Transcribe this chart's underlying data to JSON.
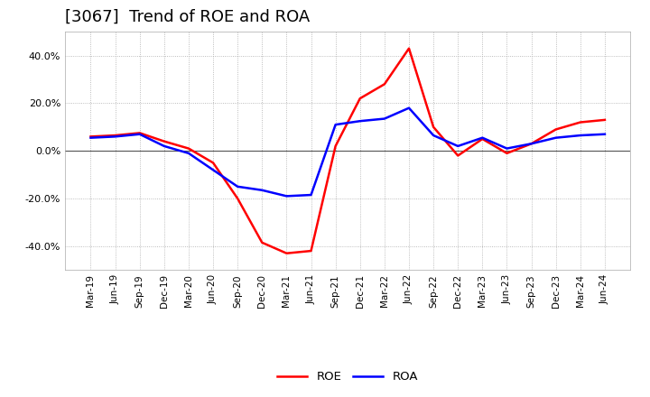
{
  "title": "[3067]  Trend of ROE and ROA",
  "x_labels": [
    "Mar-19",
    "Jun-19",
    "Sep-19",
    "Dec-19",
    "Mar-20",
    "Jun-20",
    "Sep-20",
    "Dec-20",
    "Mar-21",
    "Jun-21",
    "Sep-21",
    "Dec-21",
    "Mar-22",
    "Jun-22",
    "Sep-22",
    "Dec-22",
    "Mar-23",
    "Jun-23",
    "Sep-23",
    "Dec-23",
    "Mar-24",
    "Jun-24"
  ],
  "roe": [
    0.06,
    0.065,
    0.075,
    0.04,
    0.01,
    -0.05,
    -0.2,
    -0.385,
    -0.43,
    -0.42,
    0.02,
    0.22,
    0.28,
    0.43,
    0.1,
    -0.02,
    0.05,
    -0.01,
    0.03,
    0.09,
    0.12,
    0.13
  ],
  "roa": [
    0.055,
    0.06,
    0.07,
    0.02,
    -0.01,
    -0.08,
    -0.15,
    -0.165,
    -0.19,
    -0.185,
    0.11,
    0.125,
    0.135,
    0.18,
    0.065,
    0.02,
    0.055,
    0.01,
    0.03,
    0.055,
    0.065,
    0.07
  ],
  "roe_color": "#ff0000",
  "roa_color": "#0000ff",
  "ylim": [
    -0.5,
    0.5
  ],
  "yticks": [
    -0.4,
    -0.2,
    0.0,
    0.2,
    0.4
  ],
  "grid_color": "#aaaaaa",
  "bg_color": "#ffffff",
  "plot_bg_color": "#ffffff",
  "title_fontsize": 13,
  "line_width": 1.8
}
